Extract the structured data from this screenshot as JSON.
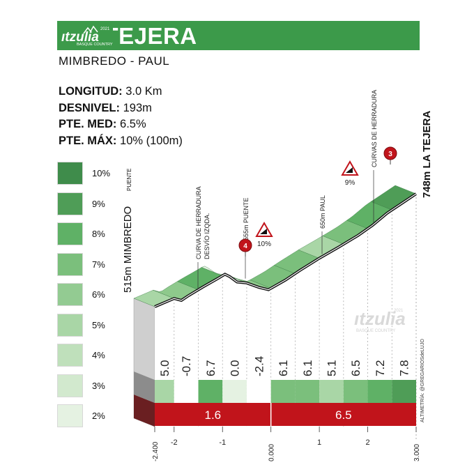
{
  "header": {
    "title": "LA TEJERA",
    "subtitle": "MIMBREDO - PAUL",
    "brand_name": "ıtzulia",
    "brand_year": "2021",
    "brand_tagline": "BASQUE COUNTRY"
  },
  "stats": [
    {
      "label": "LONGITUD:",
      "value": "3.0 Km"
    },
    {
      "label": "DESNIVEL:",
      "value": "193m"
    },
    {
      "label": "PTE. MED:",
      "value": "6.5%"
    },
    {
      "label": "PTE. MÁX:",
      "value": "10% (100m)"
    }
  ],
  "legend": [
    {
      "label": "10%",
      "color": "#3f8c4b"
    },
    {
      "label": "9%",
      "color": "#4f9d57"
    },
    {
      "label": "8%",
      "color": "#5fb166"
    },
    {
      "label": "7%",
      "color": "#7bbf7c"
    },
    {
      "label": "6%",
      "color": "#93cb92"
    },
    {
      "label": "5%",
      "color": "#a9d6a6"
    },
    {
      "label": "4%",
      "color": "#bfe0bb"
    },
    {
      "label": "3%",
      "color": "#d2e9ce"
    },
    {
      "label": "2%",
      "color": "#e5f2e2"
    }
  ],
  "credit": "ALTIMETRÍA: @GREGARIOSdeLUJO",
  "chart_data": {
    "type": "area",
    "x_unit": "km",
    "xlim": [
      -2.4,
      3.0
    ],
    "x_tick_labels": [
      "-2.400",
      "-2",
      "-1",
      "0.000",
      "1",
      "2",
      "3.000"
    ],
    "x_ticks": [
      -2.4,
      -2,
      -1,
      0,
      1,
      2,
      3
    ],
    "start": {
      "label": "515m MIMBREDO",
      "sublabel": "PUENTE",
      "alt": 515,
      "x": -2.4
    },
    "finish": {
      "label": "748m LA TEJERA",
      "alt": 748,
      "x": 3.0
    },
    "profile": [
      {
        "x": -2.4,
        "alt": 515
      },
      {
        "x": -2.0,
        "alt": 532
      },
      {
        "x": -1.85,
        "alt": 528
      },
      {
        "x": -1.7,
        "alt": 538
      },
      {
        "x": -1.4,
        "alt": 556
      },
      {
        "x": -1.1,
        "alt": 573
      },
      {
        "x": -0.95,
        "alt": 582
      },
      {
        "x": -0.85,
        "alt": 577
      },
      {
        "x": -0.7,
        "alt": 566
      },
      {
        "x": -0.5,
        "alt": 564
      },
      {
        "x": -0.25,
        "alt": 555
      },
      {
        "x": -0.05,
        "alt": 550
      },
      {
        "x": 0.0,
        "alt": 553
      },
      {
        "x": 0.3,
        "alt": 570
      },
      {
        "x": 0.6,
        "alt": 590
      },
      {
        "x": 1.0,
        "alt": 615
      },
      {
        "x": 1.4,
        "alt": 638
      },
      {
        "x": 1.8,
        "alt": 662
      },
      {
        "x": 2.1,
        "alt": 683
      },
      {
        "x": 2.4,
        "alt": 708
      },
      {
        "x": 2.7,
        "alt": 728
      },
      {
        "x": 3.0,
        "alt": 748
      }
    ],
    "segments": [
      {
        "from": -2.4,
        "to": -2.0,
        "gradient": "5.0",
        "color": "#a9d6a6"
      },
      {
        "from": -2.0,
        "to": -1.5,
        "gradient": "-0.7",
        "color": "#ffffff"
      },
      {
        "from": -1.5,
        "to": -1.0,
        "gradient": "6.7",
        "color": "#5fb166"
      },
      {
        "from": -1.0,
        "to": -0.5,
        "gradient": "0.0",
        "color": "#e5f2e2"
      },
      {
        "from": -0.5,
        "to": 0.0,
        "gradient": "-2.4",
        "color": "#ffffff"
      },
      {
        "from": 0.0,
        "to": 0.5,
        "gradient": "6.1",
        "color": "#7bbf7c"
      },
      {
        "from": 0.5,
        "to": 1.0,
        "gradient": "6.1",
        "color": "#7bbf7c"
      },
      {
        "from": 1.0,
        "to": 1.5,
        "gradient": "5.1",
        "color": "#a9d6a6"
      },
      {
        "from": 1.5,
        "to": 2.0,
        "gradient": "6.5",
        "color": "#7bbf7c"
      },
      {
        "from": 2.0,
        "to": 2.5,
        "gradient": "7.2",
        "color": "#5fb166"
      },
      {
        "from": 2.5,
        "to": 3.0,
        "gradient": "7.8",
        "color": "#4f9d57"
      }
    ],
    "section_averages": [
      {
        "from": -2.4,
        "to": 0.0,
        "value": "1.6"
      },
      {
        "from": 0.0,
        "to": 3.0,
        "value": "6.5"
      }
    ],
    "annotations": [
      {
        "x": -1.65,
        "alt": 560,
        "lines": [
          "CURVA DE HERRADURA",
          "DESVÍO IZQDA."
        ]
      },
      {
        "x": -0.55,
        "alt": 575,
        "lines": [
          "555m PUENTE"
        ]
      },
      {
        "x": 1.0,
        "alt": 620,
        "lines": [
          "650m PAUL"
        ]
      },
      {
        "x": 2.05,
        "alt": 695,
        "lines": [
          "CURVAS DE HERRADURA"
        ]
      }
    ],
    "warnings": [
      {
        "x": -0.3,
        "label": "10%"
      },
      {
        "x": 1.7,
        "label": "9%"
      }
    ],
    "category_markers": [
      {
        "x": -0.45,
        "label": "4"
      },
      {
        "x": 2.55,
        "label": "3"
      }
    ]
  }
}
